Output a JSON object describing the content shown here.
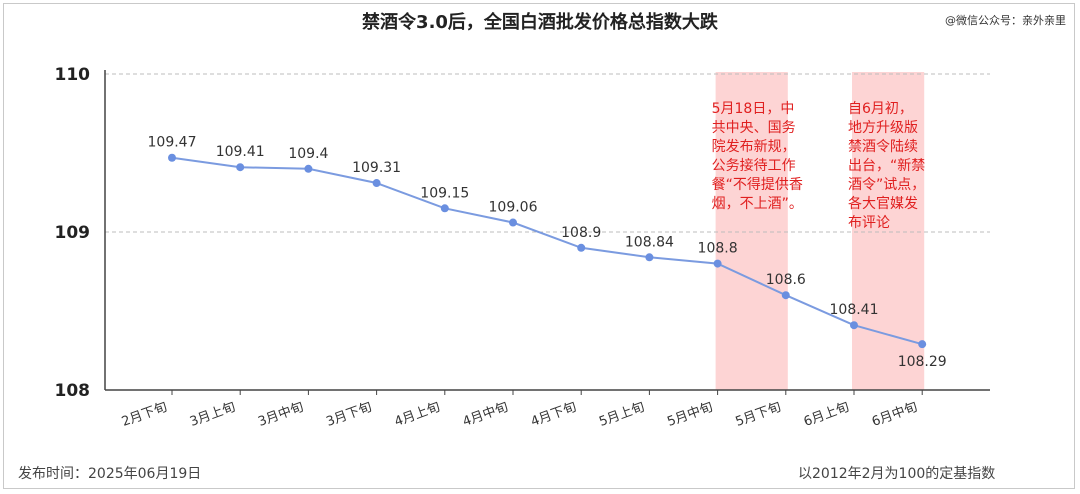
{
  "header": {
    "title": "禁酒令3.0后，全国白酒批发价格总指数大跌",
    "source": "@微信公众号：亲外亲里"
  },
  "footer": {
    "publish_date": "发布时间：2025年06月19日",
    "note": "以2012年2月为100的定基指数"
  },
  "chart_data": {
    "type": "line",
    "categories": [
      "2月下旬",
      "3月上旬",
      "3月中旬",
      "3月下旬",
      "4月上旬",
      "4月中旬",
      "4月下旬",
      "5月上旬",
      "5月中旬",
      "5月下旬",
      "6月上旬",
      "6月中旬"
    ],
    "series": [
      {
        "values": [
          109.47,
          109.41,
          109.4,
          109.31,
          109.15,
          109.06,
          108.9,
          108.84,
          108.8,
          108.6,
          108.41,
          108.29
        ]
      }
    ],
    "ylim": [
      108,
      110
    ],
    "yticks": [
      108,
      109,
      110
    ],
    "grid": "horizontal-dashed",
    "line_color": "#7b9be0",
    "highlight_color": "#fdd4d4",
    "annotation_color": "#e02020",
    "annotations": [
      {
        "from_category": 8,
        "to_category": 9,
        "lines": [
          "5月18日，中",
          "共中央、国务",
          "院发布新规，",
          "公务接待工作",
          "餐“不得提供香",
          "烟，不上酒”。"
        ]
      },
      {
        "from_category": 10,
        "to_category": 11,
        "lines": [
          "自6月初，",
          "地方升级版",
          "禁酒令陆续",
          "出台，“新禁",
          "酒令”试点，",
          "各大官媒发",
          "布评论"
        ]
      }
    ]
  }
}
